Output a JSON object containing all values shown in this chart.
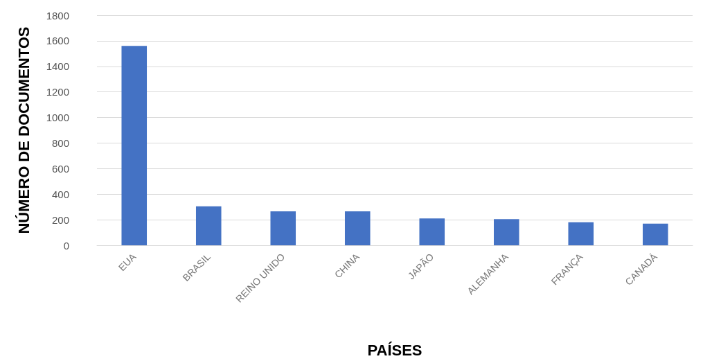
{
  "chart_data": {
    "type": "bar",
    "xlabel": "PAÍSES",
    "ylabel": "NÚMERO DE DOCUMENTOS",
    "categories": [
      "EUA",
      "BRASIL",
      "REINO UNIDO",
      "CHINA",
      "JAPÃO",
      "ALEMANHA",
      "FRANÇA",
      "CANADÁ"
    ],
    "values": [
      1560,
      305,
      265,
      265,
      210,
      205,
      180,
      170
    ],
    "color": "#4472c4",
    "ylim": [
      0,
      1800
    ],
    "yticks": [
      0,
      200,
      400,
      600,
      800,
      1000,
      1200,
      1400,
      1600,
      1800
    ],
    "grid": "y"
  }
}
